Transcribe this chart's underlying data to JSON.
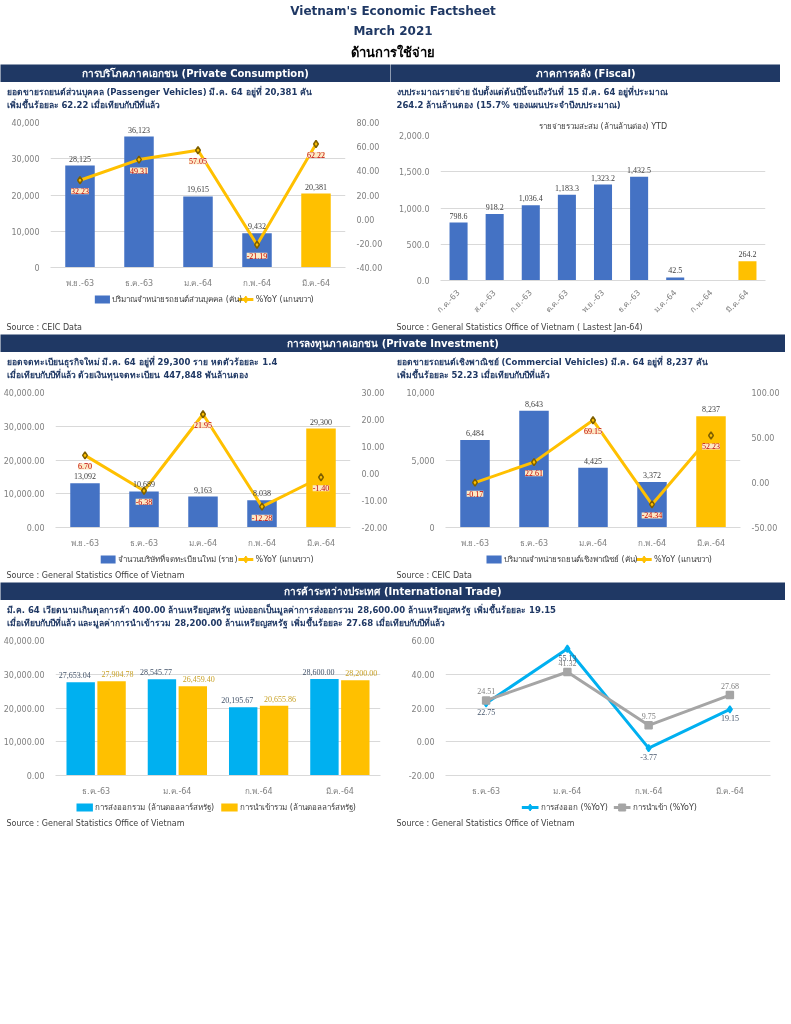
{
  "chart_data": [
    {
      "type": "bar",
      "title": "การบริโภคภาคเอกชน (Private Consumption)",
      "subtitle": "ยอดขายรถยนต์ส่วนบุคคล (Passenger Vehicles) มี.ค. 64 อยู่ที่ 20,381 คัน เพิ่มขึ้นร้อยละ 62.22 เมื่อเทียบกับปีที่แล้ว",
      "annotations": [
        "Vietnam's Economic Factsheet",
        "March 2021",
        "ด้านการใช้จ่าย",
        "Source : CEIC Data"
      ],
      "categories": [
        "พ.ย.-63",
        "ธ.ค.-63",
        "ม.ค.-64",
        "ก.พ.-64",
        "มี.ค.-64"
      ],
      "series": [
        {
          "name": "ปริมาณจำหน่ายรถยนต์ส่วนบุคคล (คัน)",
          "type": "bar",
          "color": "#4472c4",
          "colors": [
            "#4472c4",
            "#4472c4",
            "#4472c4",
            "#4472c4",
            "#ffc000"
          ],
          "values": [
            28125,
            36123,
            19615,
            9432,
            20381
          ],
          "value_labels": [
            "28,125",
            "36,123",
            "19,615",
            "9,432",
            "20,381"
          ]
        },
        {
          "name": "%YoY (แกนขวา)",
          "type": "line",
          "axis": "y2",
          "color": "#ffc000",
          "values": [
            32.23,
            49.31,
            57.05,
            -21.19,
            62.22
          ],
          "value_labels": [
            "32.23",
            "49.31",
            "57.05",
            "-21.19",
            "62.22"
          ]
        }
      ],
      "ylim": [
        0,
        40000
      ],
      "yticks": [
        0,
        {
          "value": 10000,
          "label": "10,000"
        },
        {
          "value": 20000,
          "label": "20,000"
        },
        {
          "value": 30000,
          "label": "30,000"
        },
        {
          "value": 40000,
          "label": "40,000"
        }
      ],
      "y2lim": [
        -40,
        80
      ],
      "y2ticks": [
        {
          "value": -40,
          "label": "-40.00"
        },
        {
          "value": -20,
          "label": "-20.00"
        },
        {
          "value": 0,
          "label": "0.00"
        },
        {
          "value": 20,
          "label": "20.00"
        },
        {
          "value": 40,
          "label": "40.00"
        },
        {
          "value": 60,
          "label": "60.00"
        },
        {
          "value": 80,
          "label": "80.00"
        }
      ],
      "grid": "y",
      "legend": "bottom",
      "marker": "diamond"
    },
    {
      "type": "bar",
      "title": "ภาคการคลัง (Fiscal)",
      "subtitle": "งบประมาณรายจ่าย นับตั้งแต่ต้นปีนี้จนถึงวันที่ 15 มี.ค. 64 อยู่ที่ประมาณ 264.2 ล้านล้านดอง (15.7% ของแผนประจำปีงบประมาณ)",
      "annotations": [
        "รายจ่ายรวมสะสม (ล้านล้านด่อง) YTD",
        "Source : General Statistics Office of Vietnam ( Lastest Jan-64)"
      ],
      "categories": [
        "ก.ค.-63",
        "ส.ค.-63",
        "ก.ย.-63",
        "ต.ค.-63",
        "พ.ย.-63",
        "ธ.ค.-63",
        "ม.ค.-64",
        "ก.พ.-64",
        "มี.ค.-64"
      ],
      "series": [
        {
          "type": "bar",
          "color": "#4472c4",
          "colors": [
            "#4472c4",
            "#4472c4",
            "#4472c4",
            "#4472c4",
            "#4472c4",
            "#4472c4",
            "#4472c4",
            "#4472c4",
            "#ffc000"
          ],
          "values": [
            798.6,
            918.2,
            1036.4,
            1183.3,
            1323.2,
            1432.5,
            42.5,
            null,
            264.2
          ],
          "value_labels": [
            "798.6",
            "918.2",
            "1,036.4",
            "1,183.3",
            "1,323.2",
            "1,432.5",
            "42.5",
            null,
            "264.2"
          ]
        }
      ],
      "ylim": [
        0,
        2000
      ],
      "yticks": [
        {
          "value": 0,
          "label": "0.0"
        },
        {
          "value": 500,
          "label": "500.0"
        },
        {
          "value": 1000,
          "label": "1,000.0"
        },
        {
          "value": 1500,
          "label": "1,500.0"
        },
        {
          "value": 2000,
          "label": "2,000.0"
        }
      ],
      "grid": "y"
    },
    {
      "type": "bar",
      "title": "การลงทุนภาคเอกชน (Private Investment)",
      "subtitle": "ยอดจดทะเบียนธุรกิจใหม่ มี.ค. 64 อยู่ที่ 29,300 ราย หดตัวร้อยละ 1.4 เมื่อเทียบกับปีที่แล้ว ด้วยเงินทุนจดทะเบียน 447,848 พันล้านดอง",
      "annotations": [
        "Source : General Statistics Office of Vietnam"
      ],
      "categories": [
        "พ.ย.-63",
        "ธ.ค.-63",
        "ม.ค.-64",
        "ก.พ.-64",
        "มี.ค.-64"
      ],
      "series": [
        {
          "name": "จำนวนบริษัทที่จดทะเบียนใหม่ (ราย)",
          "type": "bar",
          "color": "#4472c4",
          "colors": [
            "#4472c4",
            "#4472c4",
            "#4472c4",
            "#4472c4",
            "#ffc000"
          ],
          "values": [
            13092,
            10689,
            9163,
            8038,
            29300
          ],
          "value_labels": [
            "13,092",
            "10,689",
            "9,163",
            "8,038",
            "29,300"
          ]
        },
        {
          "name": "%YoY (แกนขวา)",
          "type": "line",
          "axis": "y2",
          "color": "#ffc000",
          "values": [
            6.7,
            -6.38,
            21.95,
            -12.28,
            -1.4
          ],
          "value_labels": [
            "6.70",
            "-6.38",
            "21.95",
            "-12.28",
            "-1.40"
          ]
        }
      ],
      "ylim": [
        0,
        40000
      ],
      "yticks": [
        {
          "value": 0,
          "label": "0.00"
        },
        {
          "value": 10000,
          "label": "10,000.00"
        },
        {
          "value": 20000,
          "label": "20,000.00"
        },
        {
          "value": 30000,
          "label": "30,000.00"
        },
        {
          "value": 40000,
          "label": "40,000.00"
        }
      ],
      "y2lim": [
        -20,
        30
      ],
      "y2ticks": [
        {
          "value": -20,
          "label": "-20.00"
        },
        {
          "value": -10,
          "label": "-10.00"
        },
        {
          "value": 0,
          "label": "0.00"
        },
        {
          "value": 10,
          "label": "10.00"
        },
        {
          "value": 20,
          "label": "20.00"
        },
        {
          "value": 30,
          "label": "30.00"
        }
      ],
      "grid": "y",
      "legend": "bottom",
      "marker": "diamond"
    },
    {
      "type": "bar",
      "subtitle": "ยอดขายรถยนต์เชิงพาณิชย์ (Commercial Vehicles) มี.ค. 64 อยู่ที่ 8,237 คัน เพิ่มขึ้นร้อยละ 52.23 เมื่อเทียบกับปีที่แล้ว",
      "annotations": [
        "Source : CEIC Data"
      ],
      "categories": [
        "พ.ย.-63",
        "ธ.ค.-63",
        "ม.ค.-64",
        "ก.พ.-64",
        "มี.ค.-64"
      ],
      "series": [
        {
          "name": "ปริมาณจำหน่ายรถยนต์เชิงพาณิชย์ (คัน)",
          "type": "bar",
          "color": "#4472c4",
          "colors": [
            "#4472c4",
            "#4472c4",
            "#4472c4",
            "#4472c4",
            "#ffc000"
          ],
          "values": [
            6484,
            8643,
            4425,
            3372,
            8237
          ],
          "value_labels": [
            "6,484",
            "8,643",
            "4,425",
            "3,372",
            "8,237"
          ]
        },
        {
          "name": "%YoY (แกนขวา)",
          "type": "line",
          "axis": "y2",
          "color": "#ffc000",
          "values": [
            -0.17,
            22.61,
            69.15,
            -24.34,
            52.23
          ],
          "value_labels": [
            "-0.17",
            "22.61",
            "69.15",
            "-24.34",
            "52.23"
          ]
        }
      ],
      "ylim": [
        0,
        10000
      ],
      "yticks": [
        0,
        {
          "value": 5000,
          "label": "5,000"
        },
        {
          "value": 10000,
          "label": "10,000"
        }
      ],
      "y2lim": [
        -50,
        100
      ],
      "y2ticks": [
        {
          "value": -50,
          "label": "-50.00"
        },
        {
          "value": 0,
          "label": "0.00"
        },
        {
          "value": 50,
          "label": "50.00"
        },
        {
          "value": 100,
          "label": "100.00"
        }
      ],
      "grid": "y",
      "legend": "bottom",
      "marker": "diamond"
    },
    {
      "type": "bar",
      "title": "การค้าระหว่างประเทศ (International Trade)",
      "subtitle": "มี.ค. 64 เวียดนามเกินดุลการค้า 400.00 ล้านเหรียญสหรัฐ แบ่งออกเป็นมูลค่าการส่งออกรวม 28,600.00 ล้านเหรียญสหรัฐ เพิ่มขึ้นร้อยละ 19.15 เมื่อเทียบกับปีที่แล้ว และมูลค่าการนำเข้ารวม 28,200.00 ล้านเหรียญสหรัฐ เพิ่มขึ้นร้อยละ 27.68 เมื่อเทียบกับปีที่แล้ว",
      "annotations": [
        "Source : General Statistics Office of Vietnam"
      ],
      "categories": [
        "ธ.ค.-63",
        "ม.ค.-64",
        "ก.พ.-64",
        "มี.ค.-64"
      ],
      "series": [
        {
          "name": "การส่งออกรวม (ล้านดอลลาร์สหรัฐ)",
          "type": "bar",
          "color": "#00b0f0",
          "values": [
            27653.04,
            28545.77,
            20195.67,
            28600.0
          ],
          "value_labels": [
            "27,653.04",
            "28,545.77",
            "20,195.67",
            "28,600.00"
          ]
        },
        {
          "name": "การนำเข้ารวม (ล้านดอลลาร์สหรัฐ)",
          "type": "bar",
          "color": "#ffc000",
          "values": [
            27904.78,
            26459.4,
            20655.86,
            28200.0
          ],
          "value_labels": [
            "27,904.78",
            "26,459.40",
            "20,655.86",
            "28,200.00"
          ]
        }
      ],
      "ylim": [
        0,
        40000
      ],
      "yticks": [
        {
          "value": 0,
          "label": "0.00"
        },
        {
          "value": 10000,
          "label": "10,000.00"
        },
        {
          "value": 20000,
          "label": "20,000.00"
        },
        {
          "value": 30000,
          "label": "30,000.00"
        },
        {
          "value": 40000,
          "label": "40,000.00"
        }
      ],
      "grid": "y",
      "legend": "bottom"
    },
    {
      "type": "line",
      "annotations": [
        "Source : General Statistics Office of Vietnam"
      ],
      "categories": [
        "ธ.ค.-63",
        "ม.ค.-64",
        "ก.พ.-64",
        "มี.ค.-64"
      ],
      "series": [
        {
          "name": "การส่งออก (%YoY)",
          "color": "#00b0f0",
          "marker": "diamond",
          "values": [
            22.75,
            55.13,
            -3.77,
            19.15
          ],
          "value_labels": [
            "22.75",
            "55.13",
            "-3.77",
            "19.15"
          ]
        },
        {
          "name": "การนำเข้า (%YoY)",
          "color": "#a5a5a5",
          "marker": "square",
          "values": [
            24.51,
            41.32,
            9.75,
            27.68
          ],
          "value_labels": [
            "24.51",
            "41.32",
            "9.75",
            "27.68"
          ]
        }
      ],
      "ylim": [
        -20,
        60
      ],
      "yticks": [
        {
          "value": -20,
          "label": "-20.00"
        },
        {
          "value": 0,
          "label": "0.00"
        },
        {
          "value": 20,
          "label": "20.00"
        },
        {
          "value": 40,
          "label": "40.00"
        },
        {
          "value": 60,
          "label": "60.00"
        }
      ],
      "grid": "y",
      "legend": "bottom"
    }
  ]
}
